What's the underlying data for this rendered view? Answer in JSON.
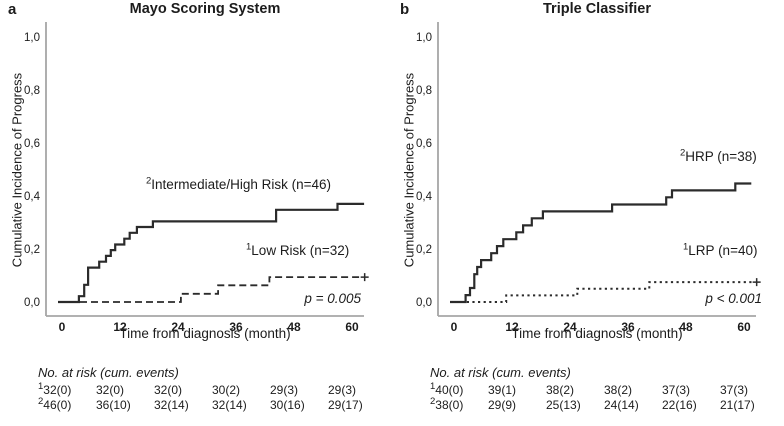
{
  "figure": {
    "background": "#ffffff",
    "text_color": "#1c1c1c",
    "axis_color": "#a6a6a6",
    "curve_color": "#2b2b2b"
  },
  "chart_data": [
    {
      "type": "line",
      "panel_label": "a",
      "title": "Mayo Scoring System",
      "xlabel": "Time from diagnosis (month)",
      "ylabel": "Cumulative Incidence of Progress",
      "xlim": [
        0,
        63
      ],
      "ylim": [
        0,
        1.0
      ],
      "xticks": [
        0,
        12,
        24,
        36,
        48,
        60
      ],
      "yticks": [
        0,
        0.2,
        0.4,
        0.6,
        0.8,
        1.0
      ],
      "ytick_labels": [
        "0,0",
        "0,2",
        "0,4",
        "0,6",
        "0,8",
        "1,0"
      ],
      "grid": false,
      "legend_position": "inline-annotations",
      "p_label": "p = 0.005",
      "series": [
        {
          "sup": "2",
          "label": "Intermediate/High Risk (n=46)",
          "n": 46,
          "line_style": "solid",
          "steps": [
            [
              0,
              0
            ],
            [
              3.5,
              0.022
            ],
            [
              4.6,
              0.065
            ],
            [
              5.4,
              0.13
            ],
            [
              7.7,
              0.152
            ],
            [
              9.1,
              0.174
            ],
            [
              10.1,
              0.196
            ],
            [
              11.0,
              0.217
            ],
            [
              12.9,
              0.239
            ],
            [
              14.0,
              0.261
            ],
            [
              15.5,
              0.283
            ],
            [
              18.8,
              0.304
            ],
            [
              44.3,
              0.348
            ],
            [
              57.0,
              0.37
            ]
          ],
          "end_x": 62.5,
          "end_marker": false
        },
        {
          "sup": "1",
          "label": "Low Risk (n=32)",
          "n": 32,
          "line_style": "dashed",
          "steps": [
            [
              0,
              0
            ],
            [
              24.6,
              0.031
            ],
            [
              32.3,
              0.063
            ],
            [
              42.9,
              0.094
            ]
          ],
          "end_x": 62.0,
          "end_marker": true
        }
      ],
      "risk_table": {
        "title": "No. at risk (cum. events)",
        "rows": [
          {
            "sup": "1",
            "cells": [
              "32(0)",
              "32(0)",
              "32(0)",
              "30(2)",
              "29(3)",
              "29(3)"
            ]
          },
          {
            "sup": "2",
            "cells": [
              "46(0)",
              "36(10)",
              "32(14)",
              "32(14)",
              "30(16)",
              "29(17)"
            ]
          }
        ]
      }
    },
    {
      "type": "line",
      "panel_label": "b",
      "title": "Triple Classifier",
      "xlabel": "Time from diagnosis (month)",
      "ylabel": "Cumulative Incidence of Progress",
      "xlim": [
        0,
        63
      ],
      "ylim": [
        0,
        1.0
      ],
      "xticks": [
        0,
        12,
        24,
        36,
        48,
        60
      ],
      "yticks": [
        0,
        0.2,
        0.4,
        0.6,
        0.8,
        1.0
      ],
      "ytick_labels": [
        "0,0",
        "0,2",
        "0,4",
        "0,6",
        "0,8",
        "1,0"
      ],
      "grid": false,
      "legend_position": "inline-annotations",
      "p_label": "p < 0.001",
      "series": [
        {
          "sup": "2",
          "label": "HRP (n=38)",
          "n": 38,
          "line_style": "solid",
          "steps": [
            [
              0,
              0
            ],
            [
              2.4,
              0.026
            ],
            [
              3.3,
              0.053
            ],
            [
              4.2,
              0.105
            ],
            [
              4.8,
              0.132
            ],
            [
              5.6,
              0.158
            ],
            [
              7.7,
              0.184
            ],
            [
              8.9,
              0.211
            ],
            [
              10.2,
              0.237
            ],
            [
              12.9,
              0.263
            ],
            [
              14.3,
              0.289
            ],
            [
              16.1,
              0.316
            ],
            [
              18.4,
              0.342
            ],
            [
              32.7,
              0.368
            ],
            [
              43.9,
              0.395
            ],
            [
              45.1,
              0.421
            ],
            [
              58.2,
              0.447
            ]
          ],
          "end_x": 61.5,
          "end_marker": false
        },
        {
          "sup": "1",
          "label": "LRP (n=40)",
          "n": 40,
          "line_style": "dotted",
          "steps": [
            [
              0,
              0
            ],
            [
              10.8,
              0.025
            ],
            [
              25.5,
              0.05
            ],
            [
              40.4,
              0.075
            ]
          ],
          "end_x": 62.0,
          "end_marker": true
        }
      ],
      "risk_table": {
        "title": "No. at risk (cum. events)",
        "rows": [
          {
            "sup": "1",
            "cells": [
              "40(0)",
              "39(1)",
              "38(2)",
              "38(2)",
              "37(3)",
              "37(3)"
            ]
          },
          {
            "sup": "2",
            "cells": [
              "38(0)",
              "29(9)",
              "25(13)",
              "24(14)",
              "22(16)",
              "21(17)"
            ]
          }
        ]
      }
    }
  ]
}
